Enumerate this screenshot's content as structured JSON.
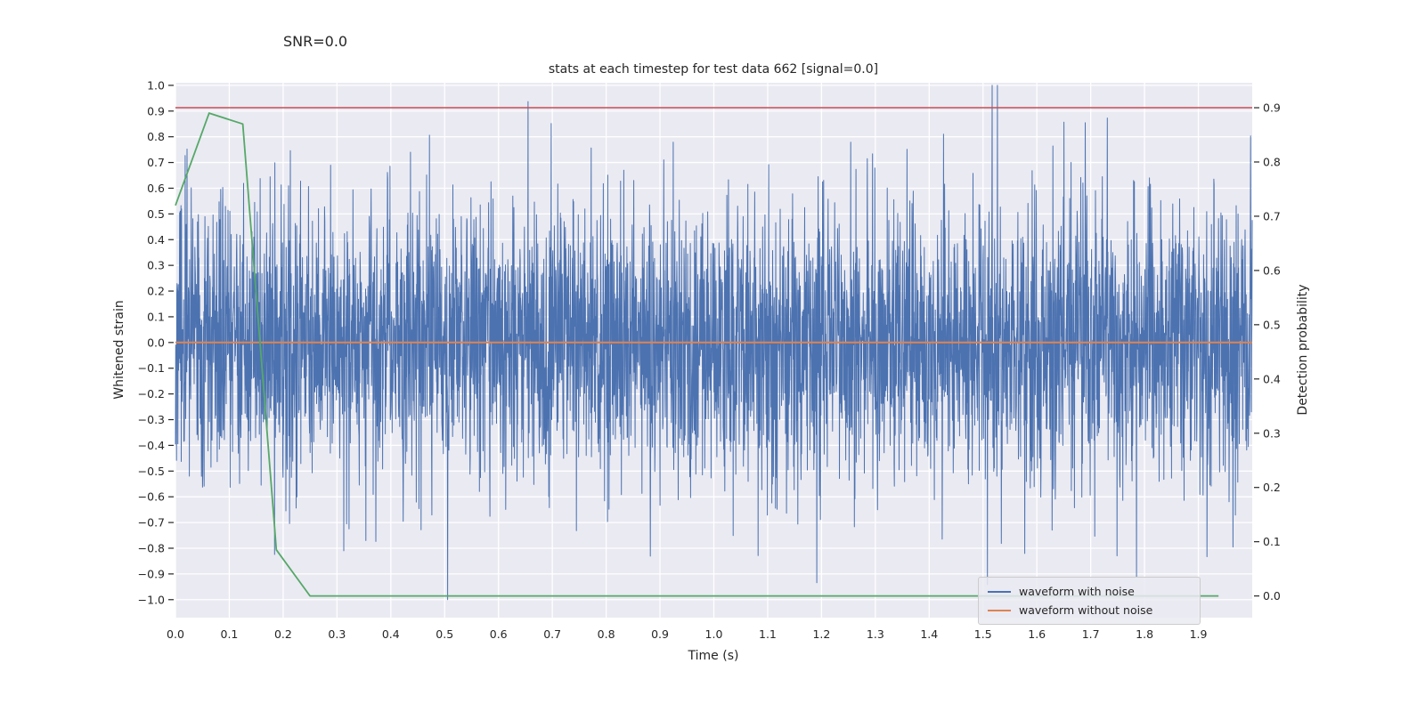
{
  "figure": {
    "snr_annotation": "SNR=0.0"
  },
  "chart_data": {
    "type": "line",
    "title": "stats at each timestep for test data 662 [signal=0.0]",
    "xlabel": "Time (s)",
    "ylabel_left": "Whitened strain",
    "ylabel_right": "Detection probability",
    "xlim": [
      0.0,
      2.0
    ],
    "ylim_left": [
      -1.07,
      1.01
    ],
    "ylim_right": [
      -0.04,
      0.946
    ],
    "x_ticks": [
      0.0,
      0.1,
      0.2,
      0.3,
      0.4,
      0.5,
      0.6,
      0.7,
      0.8,
      0.9,
      1.0,
      1.1,
      1.2,
      1.3,
      1.4,
      1.5,
      1.6,
      1.7,
      1.8,
      1.9
    ],
    "y_ticks_left": [
      -1.0,
      -0.9,
      -0.8,
      -0.7,
      -0.6,
      -0.5,
      -0.4,
      -0.3,
      -0.2,
      -0.1,
      0.0,
      0.1,
      0.2,
      0.3,
      0.4,
      0.5,
      0.6,
      0.7,
      0.8,
      0.9,
      1.0
    ],
    "y_ticks_right": [
      0.0,
      0.1,
      0.2,
      0.3,
      0.4,
      0.5,
      0.6,
      0.7,
      0.8,
      0.9
    ],
    "grid": true,
    "background_color": "#eaeaf2",
    "grid_color": "#ffffff",
    "text_color": "#262626",
    "series": [
      {
        "name": "waveform with noise",
        "axis": "left",
        "color": "#4c72b0",
        "kind": "noise",
        "x_range": [
          0.0,
          2.0
        ],
        "n_points": 4096,
        "std": 0.27,
        "clip": [
          -1.0,
          1.0
        ],
        "seed": 662,
        "line_width": 1.0
      },
      {
        "name": "waveform without noise",
        "axis": "left",
        "color": "#dd8452",
        "kind": "constant",
        "value": 0.0,
        "x_range": [
          0.0,
          2.0
        ],
        "line_width": 2.0
      },
      {
        "name": "detection threshold",
        "axis": "right",
        "color": "#c44e52",
        "kind": "constant",
        "value": 0.9,
        "x_range": [
          0.0,
          2.0
        ],
        "line_width": 1.6
      },
      {
        "name": "detection probability",
        "axis": "right",
        "color": "#55a868",
        "kind": "points",
        "x": [
          0.0,
          0.0625,
          0.125,
          0.1875,
          0.25,
          0.3125,
          0.375,
          0.4375,
          0.5,
          0.5625,
          0.625,
          0.6875,
          0.75,
          0.8125,
          0.875,
          0.9375,
          1.0,
          1.0625,
          1.125,
          1.1875,
          1.25,
          1.3125,
          1.375,
          1.4375,
          1.5,
          1.5625,
          1.625,
          1.6875,
          1.75,
          1.8125,
          1.875,
          1.9375
        ],
        "y": [
          0.72,
          0.89,
          0.87,
          0.085,
          0.0,
          0.0,
          0.0,
          0.0,
          0.0,
          0.0,
          0.0,
          0.0,
          0.0,
          0.0,
          0.0,
          0.0,
          0.0,
          0.0,
          0.0,
          0.0,
          0.0,
          0.0,
          0.0,
          0.0,
          0.0,
          0.0,
          0.0,
          0.0,
          0.0,
          0.0,
          0.0,
          0.0
        ],
        "line_width": 1.8
      }
    ],
    "legend": {
      "position": "lower right",
      "items": [
        {
          "label": "waveform with noise",
          "color": "#4c72b0"
        },
        {
          "label": "waveform without noise",
          "color": "#dd8452"
        }
      ]
    }
  }
}
